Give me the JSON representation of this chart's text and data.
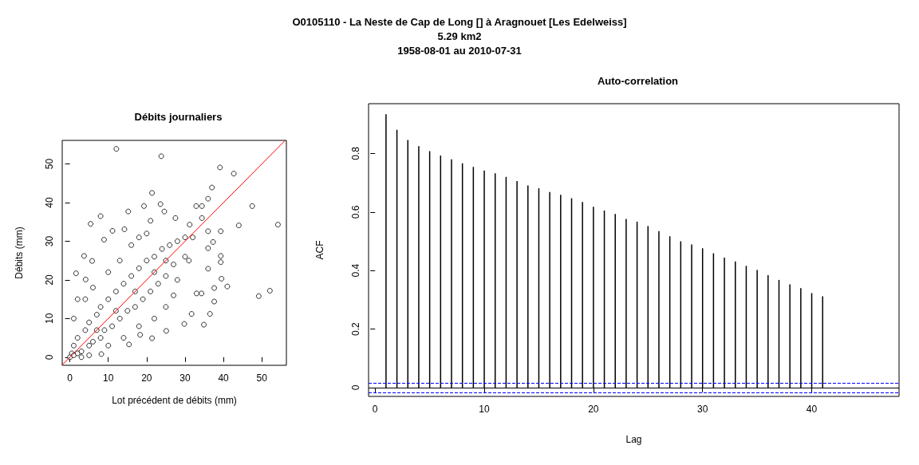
{
  "chart_data": [
    {
      "type": "other",
      "title": "O0105110 - La Neste de Cap de Long [] à Aragnouet [Les Edelweiss]",
      "annotations": [
        "5.29 km2",
        "1958-08-01 au 2010-07-31"
      ]
    },
    {
      "type": "scatter",
      "title": "Débits journaliers",
      "xlabel": "Lot précédent de débits (mm)",
      "ylabel": "Débits (mm)",
      "xlim": [
        -2,
        56.4
      ],
      "ylim": [
        -2.1,
        56.1
      ],
      "xticks": [
        0,
        10,
        20,
        30,
        40,
        50
      ],
      "yticks": [
        0,
        10,
        20,
        30,
        40,
        50
      ],
      "grid": false,
      "marker": "circle",
      "series": [
        {
          "color": "#000000",
          "x": [
            12.1,
            23.8,
            39.1,
            42.7,
            37.0,
            21.4,
            36.0,
            19.3,
            23.6,
            32.9,
            34.4,
            47.5,
            15.2,
            24.6,
            8.0,
            5.4,
            21.0,
            27.5,
            34.4,
            31.2,
            44.0,
            54.2,
            14.2,
            11.1,
            39.3,
            36.0,
            8.9,
            37.3,
            36.0,
            3.7,
            5.8,
            39.3,
            39.3,
            36.0,
            39.5,
            41.0,
            37.6,
            49.2,
            52.1,
            37.6,
            36.5,
            34.9,
            31.7,
            29.8,
            15.4,
            8.2,
            1.6,
            4.1,
            25.1,
            21.4,
            18.3,
            33.0,
            34.3,
            0,
            0.5,
            1,
            1,
            2,
            2,
            3,
            4,
            5,
            5,
            6,
            7,
            8,
            8,
            9,
            10,
            11,
            12,
            13,
            14,
            15,
            16,
            17,
            18,
            19,
            20,
            21,
            22,
            23,
            24,
            25,
            26,
            27,
            28,
            30,
            30,
            1,
            2,
            4,
            6,
            10,
            13,
            16,
            18,
            20,
            5,
            10,
            14,
            18,
            22,
            25,
            27,
            28,
            31,
            32,
            3,
            12,
            17,
            7,
            22,
            25
          ],
          "values": [
            53.9,
            52.0,
            49.1,
            47.5,
            43.9,
            42.5,
            41.0,
            39.1,
            39.6,
            39.1,
            39.1,
            39.1,
            37.7,
            37.7,
            36.5,
            34.5,
            35.3,
            36.0,
            36.0,
            34.3,
            34.1,
            34.3,
            33.1,
            32.7,
            32.6,
            32.6,
            30.4,
            29.8,
            28.2,
            26.2,
            24.9,
            26.2,
            24.6,
            22.9,
            20.3,
            18.3,
            17.9,
            15.8,
            17.2,
            14.4,
            11.2,
            8.4,
            11.2,
            8.6,
            3.3,
            0.8,
            21.7,
            20.1,
            6.8,
            4.9,
            5.8,
            16.5,
            16.5,
            0,
            1,
            0.5,
            3,
            1,
            5,
            1.5,
            7,
            3,
            9,
            4,
            11,
            5,
            13,
            7,
            15,
            8,
            17,
            10,
            19,
            12,
            21,
            13,
            23,
            15,
            25,
            17,
            26,
            19,
            28,
            21,
            29,
            24,
            30,
            31,
            26,
            10,
            15,
            15,
            18,
            22,
            25,
            29,
            31,
            32,
            0.5,
            3,
            5,
            8,
            10,
            13,
            16,
            20,
            25,
            31,
            0,
            12,
            17,
            7,
            22,
            25
          ]
        },
        {
          "type": "line",
          "color": "#ff0000",
          "marker": "none",
          "x": [
            -2,
            56.1
          ],
          "values": [
            -2,
            56.1
          ]
        }
      ]
    },
    {
      "type": "bar",
      "title": "Auto-correlation",
      "xlabel": "Lag",
      "ylabel": "ACF",
      "xlim": [
        -0.6,
        48
      ],
      "ylim": [
        -0.03,
        0.97
      ],
      "xticks": [
        0,
        10,
        20,
        30,
        40
      ],
      "yticks": [
        0,
        0.2,
        0.4,
        0.6,
        0.8
      ],
      "grid": false,
      "series": [
        {
          "type": "bar",
          "color": "#000000",
          "x": [
            1,
            2,
            3,
            4,
            5,
            6,
            7,
            8,
            9,
            10,
            11,
            12,
            13,
            14,
            15,
            16,
            17,
            18,
            19,
            20,
            21,
            22,
            23,
            24,
            25,
            26,
            27,
            28,
            29,
            30,
            31,
            32,
            33,
            34,
            35,
            36,
            37,
            38,
            39,
            40,
            41
          ],
          "values": [
            0.934,
            0.881,
            0.846,
            0.825,
            0.808,
            0.793,
            0.78,
            0.766,
            0.754,
            0.742,
            0.732,
            0.72,
            0.706,
            0.691,
            0.681,
            0.668,
            0.659,
            0.647,
            0.634,
            0.618,
            0.605,
            0.593,
            0.576,
            0.567,
            0.552,
            0.535,
            0.517,
            0.5,
            0.489,
            0.476,
            0.459,
            0.444,
            0.431,
            0.416,
            0.402,
            0.384,
            0.368,
            0.353,
            0.34,
            0.323,
            0.312
          ]
        }
      ],
      "ref_lines": [
        {
          "axis": "y",
          "value": 0,
          "color": "#000000",
          "line_style": "solid"
        },
        {
          "axis": "y",
          "value": 0.017,
          "color": "#0000ff",
          "line_style": "dashed"
        },
        {
          "axis": "y",
          "value": -0.017,
          "color": "#0000ff",
          "line_style": "dashed"
        }
      ]
    }
  ]
}
